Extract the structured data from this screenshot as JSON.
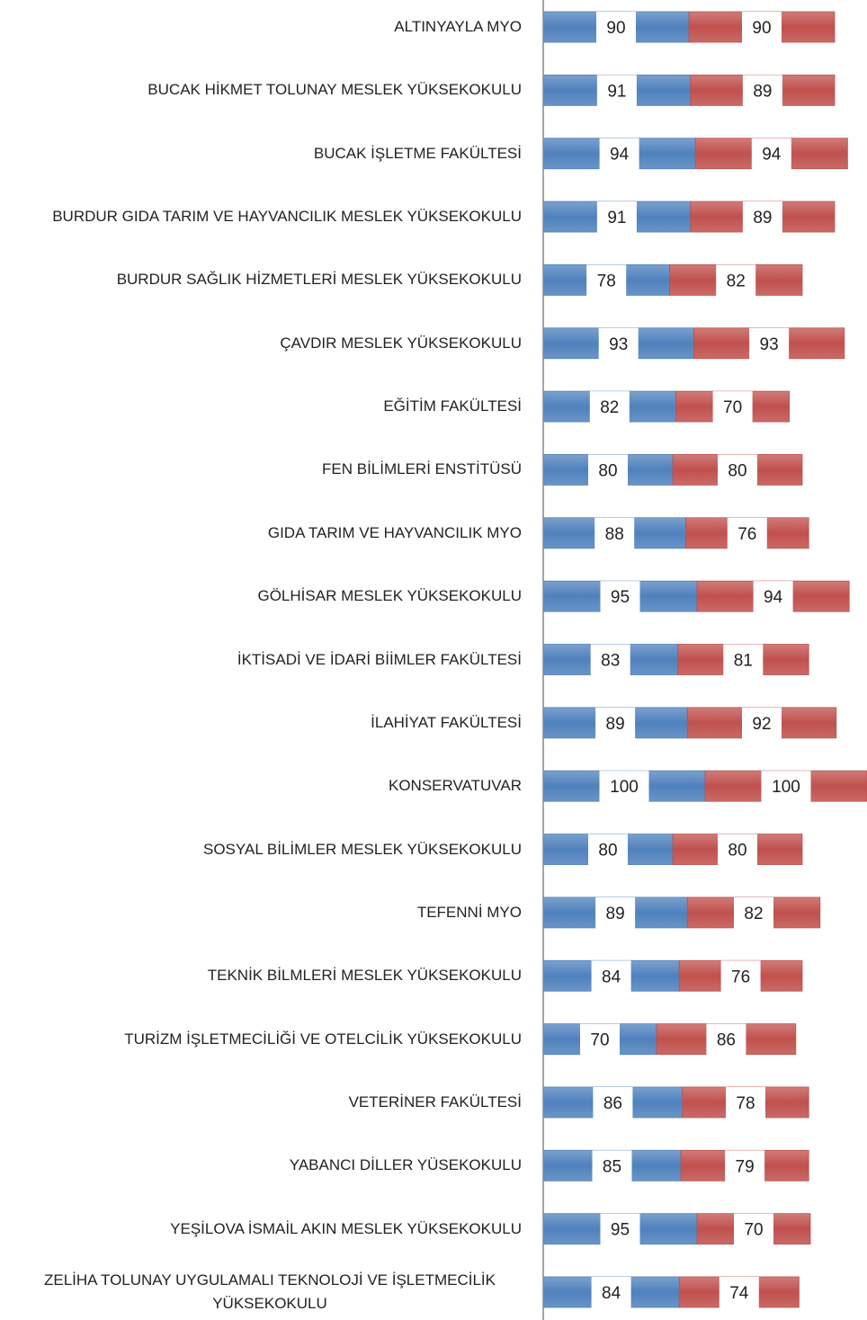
{
  "chart_data": {
    "type": "stacked-bar-horizontal",
    "categories": [
      "ALTINYAYLA MYO",
      "BUCAK HİKMET TOLUNAY MESLEK YÜKSEKOKULU",
      "BUCAK İŞLETME FAKÜLTESİ",
      "BURDUR GIDA TARIM VE HAYVANCILIK MESLEK YÜKSEKOKULU",
      "BURDUR SAĞLIK HİZMETLERİ MESLEK YÜKSEKOKULU",
      "ÇAVDIR MESLEK YÜKSEKOKULU",
      "EĞİTİM FAKÜLTESİ",
      "FEN BİLİMLERİ ENSTİTÜSÜ",
      "GIDA TARIM VE HAYVANCILIK MYO",
      "GÖLHİSAR MESLEK YÜKSEKOKULU",
      "İKTİSADİ VE İDARİ BİİMLER FAKÜLTESİ",
      "İLAHİYAT FAKÜLTESİ",
      "KONSERVATUVAR",
      "SOSYAL BİLİMLER MESLEK YÜKSEKOKULU",
      "TEFENNİ MYO",
      "TEKNİK BİLMLERİ MESLEK YÜKSEKOKULU",
      "TURİZM İŞLETMECİLİĞİ VE OTELCİLİK YÜKSEKOKULU",
      "VETERİNER FAKÜLTESİ",
      "YABANCI DİLLER YÜSEKOKULU",
      "YEŞİLOVA İSMAİL AKIN MESLEK YÜKSEKOKULU",
      "ZELİHA TOLUNAY UYGULAMALI TEKNOLOJİ VE İŞLETMECİLİK YÜKSEKOKULU"
    ],
    "series": [
      {
        "color": "#4f81bd",
        "values": [
          90,
          91,
          94,
          91,
          78,
          93,
          82,
          80,
          88,
          95,
          83,
          89,
          100,
          80,
          89,
          84,
          70,
          86,
          85,
          95,
          84
        ]
      },
      {
        "color": "#c0504d",
        "values": [
          90,
          89,
          94,
          89,
          82,
          93,
          70,
          80,
          76,
          94,
          81,
          92,
          100,
          80,
          82,
          76,
          86,
          78,
          79,
          70,
          74
        ]
      }
    ],
    "xlim": [
      0,
      200
    ]
  }
}
